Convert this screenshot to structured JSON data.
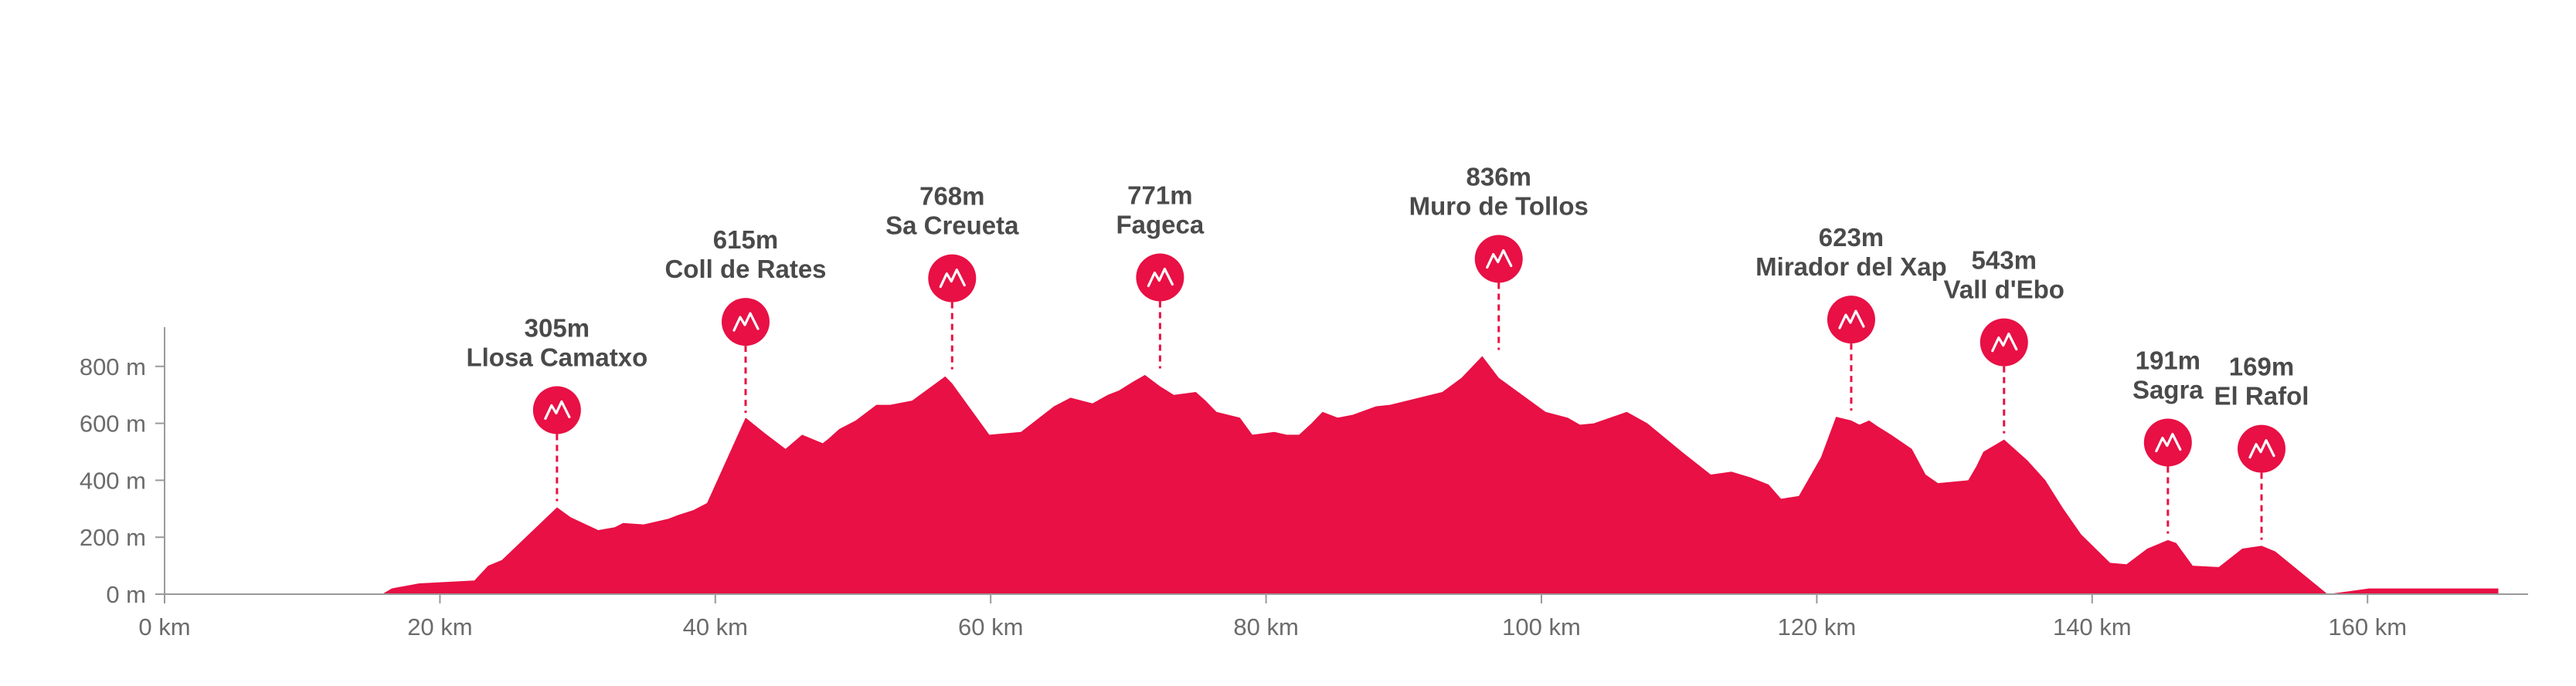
{
  "chart_data": {
    "type": "area",
    "title": "",
    "xlabel": "",
    "ylabel": "",
    "xlim": [
      0,
      168
    ],
    "ylim": [
      0,
      900
    ],
    "x_ticks": [
      0,
      20,
      40,
      60,
      80,
      100,
      120,
      140,
      160
    ],
    "x_tick_labels": [
      "0 km",
      "20 km",
      "40 km",
      "60 km",
      "80 km",
      "100 km",
      "120 km",
      "140 km",
      "160 km"
    ],
    "y_ticks": [
      0,
      200,
      400,
      600,
      800
    ],
    "y_tick_labels": [
      "0 m",
      "200 m",
      "400 m",
      "600 m",
      "800 m"
    ],
    "grid": false,
    "fill_color": "#e81044",
    "profile": {
      "x": [
        0,
        15.8,
        16.5,
        18.5,
        22.5,
        23.5,
        24.5,
        28.5,
        29.5,
        31.5,
        32.7,
        33.3,
        34.8,
        36.6,
        37.3,
        38.4,
        39.4,
        42.2,
        43.6,
        45.1,
        46.3,
        47.8,
        48.2,
        49.0,
        50.2,
        51.7,
        52.7,
        54.3,
        56.7,
        57.2,
        59.9,
        62.2,
        64.6,
        65.8,
        67.4,
        68.5,
        69.3,
        70.3,
        71.2,
        72.3,
        73.3,
        74.9,
        75.6,
        76.4,
        78.1,
        79.0,
        80.6,
        81.5,
        82.4,
        83.3,
        84.1,
        85.2,
        86.3,
        88.0,
        89.0,
        92.8,
        94.2,
        95.7,
        96.9,
        100.3,
        101.9,
        102.8,
        103.8,
        106.2,
        107.7,
        110.2,
        112.3,
        113.8,
        115.2,
        116.5,
        117.4,
        118.7,
        120.3,
        121.4,
        122.5,
        123.1,
        123.8,
        124.4,
        125.4,
        126.9,
        127.9,
        128.8,
        131.0,
        131.6,
        132.1,
        133.6,
        135.3,
        136.6,
        137.9,
        139.2,
        141.3,
        142.5,
        144.0,
        145.5,
        146.1,
        147.3,
        149.2,
        150.9,
        152.3,
        153.3,
        157.1,
        160.1,
        169.5
      ],
      "y": [
        0,
        0,
        20,
        38,
        48,
        100,
        120,
        305,
        270,
        225,
        235,
        250,
        245,
        265,
        278,
        295,
        320,
        620,
        565,
        510,
        560,
        530,
        545,
        580,
        610,
        665,
        665,
        680,
        765,
        740,
        560,
        570,
        660,
        690,
        670,
        700,
        715,
        745,
        770,
        730,
        700,
        710,
        680,
        640,
        620,
        560,
        570,
        560,
        560,
        600,
        640,
        620,
        630,
        660,
        665,
        710,
        760,
        836,
        760,
        640,
        620,
        595,
        600,
        640,
        600,
        500,
        420,
        430,
        410,
        385,
        335,
        345,
        480,
        623,
        610,
        595,
        610,
        590,
        560,
        510,
        420,
        390,
        400,
        450,
        500,
        543,
        470,
        400,
        300,
        210,
        110,
        105,
        160,
        190,
        180,
        100,
        95,
        160,
        170,
        150,
        0,
        20,
        20
      ]
    },
    "climbs": [
      {
        "km": 28.5,
        "elevation": "305m",
        "name": "Llosa Camatxo"
      },
      {
        "km": 42.2,
        "elevation": "615m",
        "name": "Coll de Rates"
      },
      {
        "km": 57.2,
        "elevation": "768m",
        "name": "Sa Creueta"
      },
      {
        "km": 72.3,
        "elevation": "771m",
        "name": "Fageca"
      },
      {
        "km": 96.9,
        "elevation": "836m",
        "name": "Muro de Tollos"
      },
      {
        "km": 122.5,
        "elevation": "623m",
        "name": "Mirador del Xap"
      },
      {
        "km": 133.6,
        "elevation": "543m",
        "name": "Vall d'Ebo"
      },
      {
        "km": 145.5,
        "elevation": "191m",
        "name": "Sagra"
      },
      {
        "km": 152.3,
        "elevation": "169m",
        "name": "El Rafol"
      }
    ]
  }
}
